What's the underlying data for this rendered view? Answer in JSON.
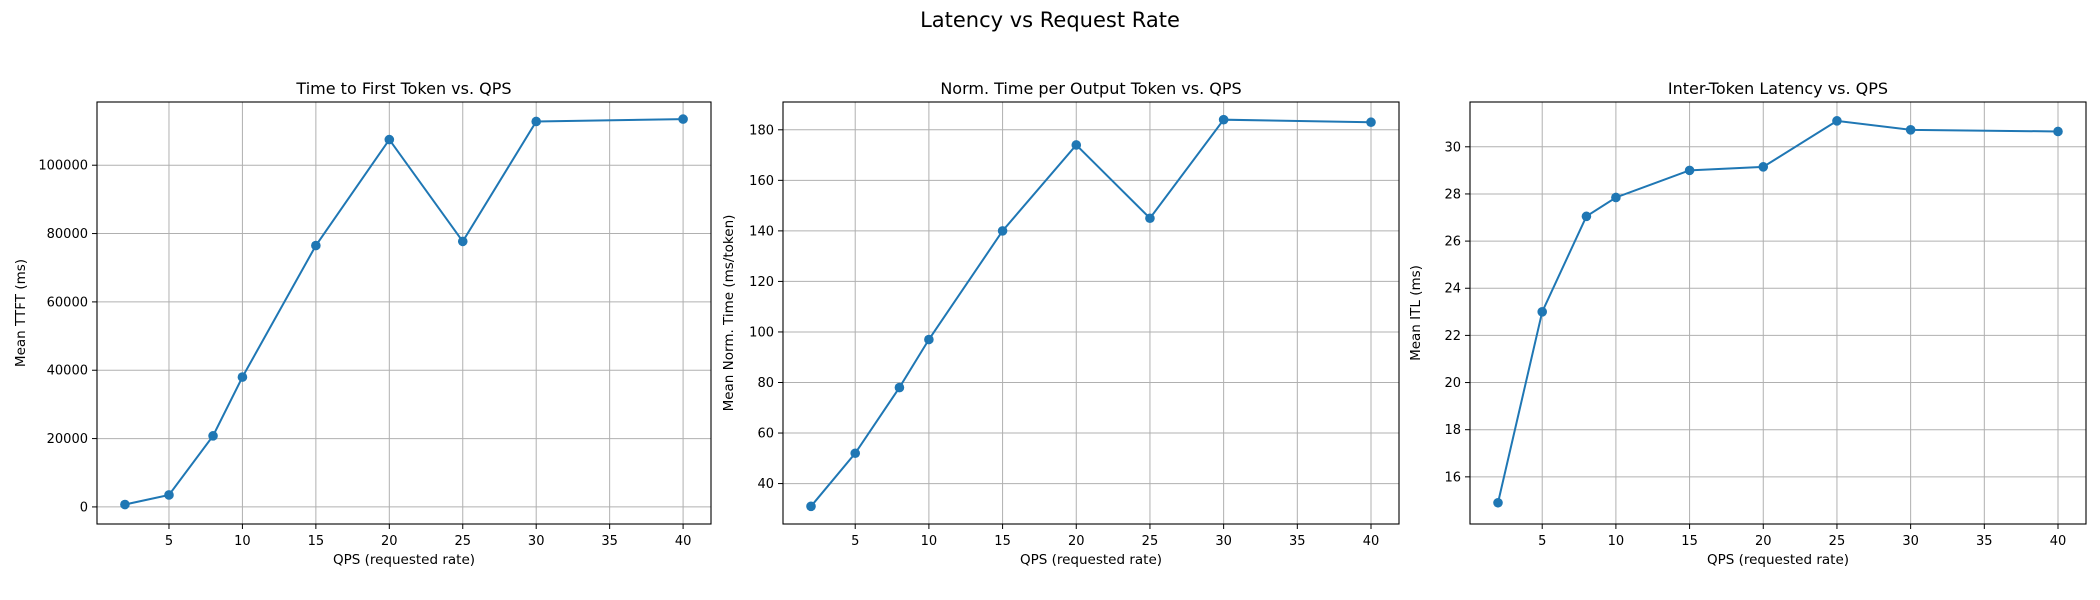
{
  "figure": {
    "title": "Latency vs Request Rate"
  },
  "chart_data": [
    {
      "type": "line",
      "title": "Time to First Token vs. QPS",
      "xlabel": "QPS (requested rate)",
      "ylabel": "Mean TTFT (ms)",
      "xlim": [
        0.1,
        41.9
      ],
      "ylim": [
        -5000,
        118500
      ],
      "xticks": [
        5,
        10,
        15,
        20,
        25,
        30,
        35,
        40
      ],
      "yticks": [
        0,
        20000,
        40000,
        60000,
        80000,
        100000
      ],
      "grid": true,
      "color": "#1f77b4",
      "marker": "circle",
      "series": [
        {
          "x": [
            2,
            5,
            8,
            10,
            15,
            20,
            25,
            30,
            40
          ],
          "y": [
            700,
            3500,
            20800,
            38000,
            76500,
            107500,
            77700,
            112800,
            113500
          ]
        }
      ]
    },
    {
      "type": "line",
      "title": "Norm. Time per Output Token vs. QPS",
      "xlabel": "QPS (requested rate)",
      "ylabel": "Mean Norm. Time (ms/token)",
      "xlim": [
        0.1,
        41.9
      ],
      "ylim": [
        24,
        191
      ],
      "xticks": [
        5,
        10,
        15,
        20,
        25,
        30,
        35,
        40
      ],
      "yticks": [
        40,
        60,
        80,
        100,
        120,
        140,
        160,
        180
      ],
      "grid": true,
      "color": "#1f77b4",
      "marker": "circle",
      "series": [
        {
          "x": [
            2,
            5,
            8,
            10,
            15,
            20,
            25,
            30,
            40
          ],
          "y": [
            31,
            52,
            78,
            97,
            140,
            174,
            145,
            184,
            183
          ]
        }
      ]
    },
    {
      "type": "line",
      "title": "Inter-Token Latency vs. QPS",
      "xlabel": "QPS (requested rate)",
      "ylabel": "Mean ITL (ms)",
      "xlim": [
        0.1,
        41.9
      ],
      "ylim": [
        14.0,
        31.9
      ],
      "xticks": [
        5,
        10,
        15,
        20,
        25,
        30,
        35,
        40
      ],
      "yticks": [
        16,
        18,
        20,
        22,
        24,
        26,
        28,
        30
      ],
      "grid": true,
      "color": "#1f77b4",
      "marker": "circle",
      "series": [
        {
          "x": [
            2,
            5,
            8,
            10,
            15,
            20,
            25,
            30,
            40
          ],
          "y": [
            14.9,
            23.0,
            27.05,
            27.85,
            29.0,
            29.15,
            31.1,
            30.72,
            30.65
          ]
        }
      ]
    }
  ]
}
